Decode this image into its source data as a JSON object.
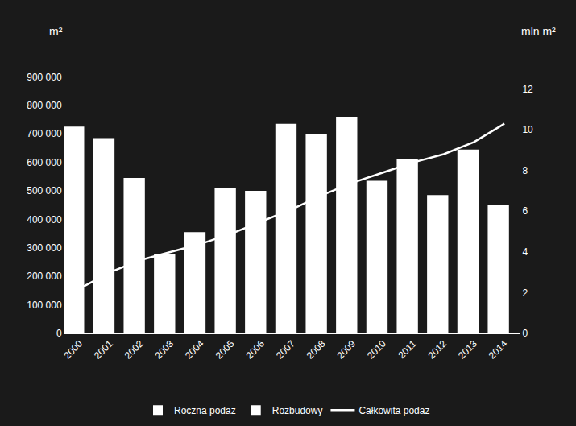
{
  "chart_data": {
    "type": "bar",
    "categories": [
      "2000",
      "2001",
      "2002",
      "2003",
      "2004",
      "2005",
      "2006",
      "2007",
      "2008",
      "2009",
      "2010",
      "2011",
      "2012",
      "2013",
      "2014"
    ],
    "series": [
      {
        "name": "Roczna podaż",
        "type": "bar",
        "color": "#ffffff",
        "values": [
          725000,
          685000,
          545000,
          280000,
          355000,
          510000,
          500000,
          735000,
          700000,
          760000,
          535000,
          610000,
          485000,
          645000,
          450000
        ]
      },
      {
        "name": "Rozbudowy",
        "type": "bar",
        "color": "#ffffff",
        "values": [
          null,
          null,
          null,
          null,
          null,
          null,
          null,
          null,
          null,
          null,
          null,
          null,
          null,
          null,
          null
        ]
      },
      {
        "name": "Całkowita podaż",
        "type": "line",
        "axis": "y2",
        "color": "#ffffff",
        "values": [
          2.2,
          3.0,
          3.6,
          4.0,
          4.4,
          4.9,
          5.5,
          6.1,
          6.8,
          7.4,
          7.9,
          8.4,
          8.8,
          9.4,
          10.3
        ]
      }
    ],
    "ylabel": "m²",
    "y2label": "mln m²",
    "ylim": [
      0,
      1000000
    ],
    "yticks": [
      0,
      {
        "value": 100000,
        "label": "100 000"
      },
      {
        "value": 200000,
        "label": "200 000"
      },
      {
        "value": 300000,
        "label": "300 000"
      },
      {
        "value": 400000,
        "label": "400 000"
      },
      {
        "value": 500000,
        "label": "500 000"
      },
      {
        "value": 600000,
        "label": "600 000"
      },
      {
        "value": 700000,
        "label": "700 000"
      },
      {
        "value": 800000,
        "label": "800 000"
      },
      {
        "value": 900000,
        "label": "900 000"
      }
    ],
    "y2lim": [
      0,
      14
    ],
    "y2ticks": [
      0,
      2,
      4,
      6,
      8,
      10,
      12
    ],
    "grid": false,
    "legend": "bottom"
  }
}
